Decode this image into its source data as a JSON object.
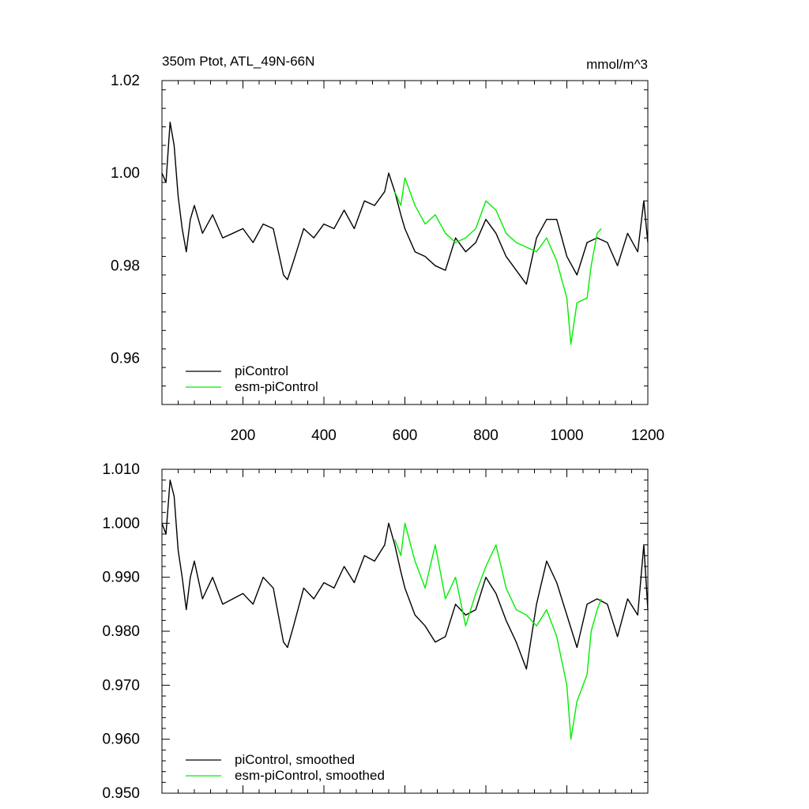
{
  "chart_data": [
    {
      "type": "line",
      "title_left": "350m Ptot, ATL_49N-66N",
      "title_right": "mmol/m^3",
      "xlim": [
        0,
        1200
      ],
      "ylim": [
        0.95,
        1.02
      ],
      "xticks": [
        200,
        400,
        600,
        800,
        1000,
        1200
      ],
      "xtick_labels": [
        "200",
        "400",
        "600",
        "800",
        "1000",
        "1200"
      ],
      "yticks": [
        0.96,
        0.98,
        1.0,
        1.02
      ],
      "ytick_labels": [
        "0.96",
        "0.98",
        "1.00",
        "1.02"
      ],
      "legend_position": "bottom-left",
      "series": [
        {
          "name": "piControl",
          "color": "#000000",
          "x": [
            0,
            10,
            20,
            30,
            40,
            50,
            60,
            70,
            80,
            100,
            125,
            150,
            175,
            200,
            225,
            250,
            275,
            300,
            310,
            325,
            350,
            375,
            400,
            425,
            450,
            475,
            500,
            525,
            550,
            560,
            575,
            590,
            600,
            625,
            650,
            675,
            700,
            725,
            750,
            775,
            800,
            825,
            850,
            875,
            900,
            925,
            950,
            975,
            1000,
            1025,
            1050,
            1075,
            1100,
            1125,
            1150,
            1175,
            1190,
            1200
          ],
          "y": [
            1.0,
            0.998,
            1.011,
            1.006,
            0.995,
            0.988,
            0.983,
            0.99,
            0.993,
            0.987,
            0.991,
            0.986,
            0.987,
            0.988,
            0.985,
            0.989,
            0.988,
            0.978,
            0.977,
            0.981,
            0.988,
            0.986,
            0.989,
            0.988,
            0.992,
            0.988,
            0.994,
            0.993,
            0.996,
            1.0,
            0.996,
            0.991,
            0.988,
            0.983,
            0.982,
            0.98,
            0.979,
            0.986,
            0.983,
            0.985,
            0.99,
            0.987,
            0.982,
            0.979,
            0.976,
            0.986,
            0.99,
            0.99,
            0.982,
            0.978,
            0.985,
            0.986,
            0.985,
            0.98,
            0.987,
            0.983,
            0.994,
            0.985
          ]
        },
        {
          "name": "esm-piControl",
          "color": "#00ee00",
          "x": [
            575,
            590,
            600,
            625,
            650,
            675,
            700,
            725,
            750,
            775,
            800,
            825,
            850,
            875,
            900,
            925,
            950,
            975,
            1000,
            1010,
            1025,
            1050,
            1060,
            1075,
            1085
          ],
          "y": [
            0.996,
            0.993,
            0.999,
            0.993,
            0.989,
            0.991,
            0.987,
            0.985,
            0.986,
            0.988,
            0.994,
            0.992,
            0.987,
            0.985,
            0.984,
            0.983,
            0.986,
            0.981,
            0.973,
            0.963,
            0.972,
            0.973,
            0.98,
            0.987,
            0.988
          ]
        }
      ]
    },
    {
      "type": "line",
      "xlim": [
        0,
        1200
      ],
      "ylim": [
        0.95,
        1.01
      ],
      "xticks": [
        200,
        400,
        600,
        800,
        1000,
        1200
      ],
      "yticks": [
        0.95,
        0.96,
        0.97,
        0.98,
        0.99,
        1.0,
        1.01
      ],
      "ytick_labels": [
        "0.950",
        "0.960",
        "0.970",
        "0.980",
        "0.990",
        "1.000",
        "1.010"
      ],
      "legend_position": "bottom-left",
      "series": [
        {
          "name": "piControl, smoothed",
          "color": "#000000",
          "x": [
            0,
            10,
            20,
            30,
            40,
            50,
            60,
            70,
            80,
            100,
            125,
            150,
            175,
            200,
            225,
            250,
            275,
            300,
            310,
            325,
            350,
            375,
            400,
            425,
            450,
            475,
            500,
            525,
            550,
            560,
            575,
            590,
            600,
            625,
            650,
            675,
            700,
            725,
            750,
            775,
            800,
            825,
            850,
            875,
            900,
            925,
            950,
            975,
            1000,
            1025,
            1050,
            1075,
            1100,
            1125,
            1150,
            1175,
            1190,
            1200
          ],
          "y": [
            1.0,
            0.998,
            1.008,
            1.005,
            0.995,
            0.99,
            0.984,
            0.99,
            0.993,
            0.986,
            0.99,
            0.985,
            0.986,
            0.987,
            0.985,
            0.99,
            0.988,
            0.978,
            0.977,
            0.981,
            0.988,
            0.986,
            0.989,
            0.988,
            0.992,
            0.989,
            0.994,
            0.993,
            0.996,
            1.0,
            0.996,
            0.991,
            0.988,
            0.983,
            0.981,
            0.978,
            0.979,
            0.985,
            0.983,
            0.984,
            0.99,
            0.987,
            0.982,
            0.978,
            0.973,
            0.985,
            0.993,
            0.989,
            0.983,
            0.977,
            0.985,
            0.986,
            0.985,
            0.979,
            0.986,
            0.983,
            0.996,
            0.984
          ]
        },
        {
          "name": "esm-piControl, smoothed",
          "color": "#00ee00",
          "x": [
            575,
            590,
            600,
            625,
            650,
            675,
            700,
            725,
            750,
            775,
            800,
            825,
            850,
            875,
            900,
            925,
            950,
            975,
            1000,
            1010,
            1025,
            1050,
            1060,
            1075,
            1085
          ],
          "y": [
            0.997,
            0.994,
            1.0,
            0.993,
            0.988,
            0.996,
            0.986,
            0.99,
            0.981,
            0.987,
            0.992,
            0.996,
            0.988,
            0.984,
            0.983,
            0.981,
            0.984,
            0.979,
            0.97,
            0.96,
            0.967,
            0.972,
            0.98,
            0.984,
            0.986
          ]
        }
      ]
    }
  ]
}
